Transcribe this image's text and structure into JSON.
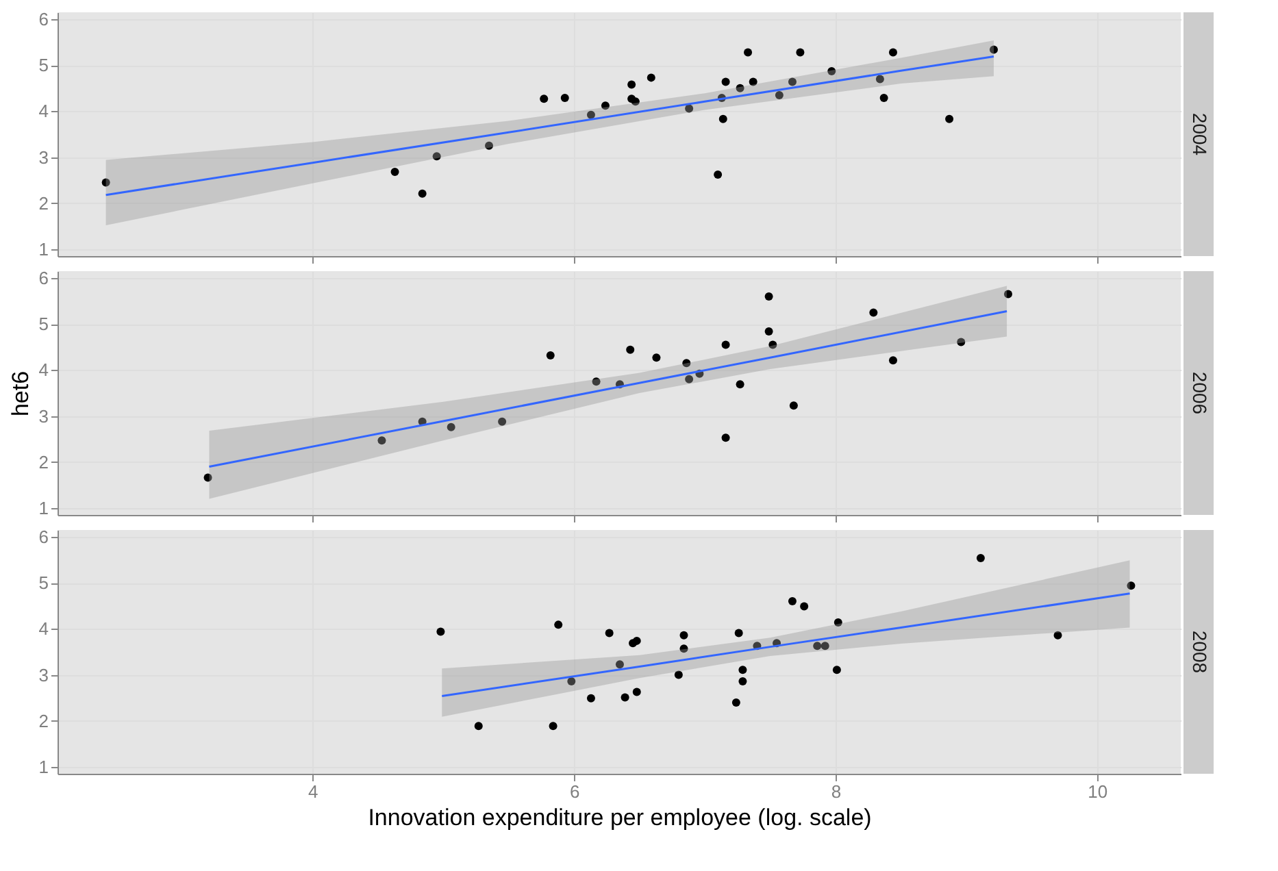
{
  "chart_data": [
    {
      "type": "scatter",
      "title": "2004",
      "xlim": [
        2.05,
        10.64
      ],
      "xticks": [
        4,
        6,
        8,
        10
      ],
      "ylim": [
        0.85,
        6.15
      ],
      "yticks": [
        1,
        2,
        3,
        4,
        5,
        6
      ],
      "grid": true,
      "tick_labels": "y",
      "series": [
        {
          "type": "scatter",
          "marker": "circle",
          "color": "#000000",
          "x": [
            2.42,
            4.63,
            4.84,
            4.95,
            5.35,
            5.77,
            5.93,
            6.13,
            6.24,
            6.44,
            6.44,
            6.47,
            6.59,
            6.88,
            7.1,
            7.13,
            7.14,
            7.16,
            7.27,
            7.33,
            7.37,
            7.57,
            7.67,
            7.73,
            7.97,
            8.34,
            8.37,
            8.44,
            8.87,
            9.21
          ],
          "values": [
            2.45,
            2.68,
            2.21,
            3.02,
            3.25,
            4.27,
            4.29,
            3.92,
            4.12,
            4.58,
            4.27,
            4.21,
            4.73,
            4.06,
            2.62,
            4.29,
            3.83,
            4.64,
            4.5,
            5.28,
            4.64,
            4.35,
            4.64,
            5.28,
            4.87,
            4.7,
            4.29,
            5.28,
            3.83,
            5.34
          ]
        },
        {
          "type": "line",
          "color": "#3366ff",
          "x": [
            2.42,
            4,
            5.5,
            7,
            8.5,
            9.21
          ],
          "values": [
            2.18,
            2.88,
            3.54,
            4.21,
            4.88,
            5.19
          ],
          "lower": [
            1.52,
            2.43,
            3.29,
            4.03,
            4.6,
            4.76
          ],
          "upper": [
            2.94,
            3.33,
            3.79,
            4.39,
            5.16,
            5.54
          ]
        }
      ]
    },
    {
      "type": "scatter",
      "title": "2006",
      "ylabel": "het6",
      "xlim": [
        2.05,
        10.64
      ],
      "xticks": [
        4,
        6,
        8,
        10
      ],
      "ylim": [
        0.85,
        6.15
      ],
      "yticks": [
        1,
        2,
        3,
        4,
        5,
        6
      ],
      "grid": true,
      "tick_labels": "y",
      "series": [
        {
          "type": "scatter",
          "marker": "circle",
          "color": "#000000",
          "x": [
            3.2,
            4.53,
            4.84,
            5.06,
            5.45,
            5.82,
            6.17,
            6.35,
            6.43,
            6.63,
            6.86,
            6.88,
            6.96,
            7.16,
            7.16,
            7.27,
            7.49,
            7.49,
            7.52,
            7.68,
            8.29,
            8.44,
            8.96,
            9.32
          ],
          "values": [
            1.66,
            2.47,
            2.88,
            2.76,
            2.88,
            4.32,
            3.75,
            3.69,
            4.44,
            4.27,
            4.15,
            3.8,
            3.92,
            4.55,
            2.53,
            3.69,
            5.6,
            4.84,
            4.55,
            3.23,
            5.25,
            4.21,
            4.61,
            5.65
          ]
        },
        {
          "type": "line",
          "color": "#3366ff",
          "x": [
            3.21,
            5,
            6.5,
            7.5,
            9.31
          ],
          "values": [
            1.9,
            2.89,
            3.72,
            4.27,
            5.28
          ],
          "lower": [
            1.2,
            2.47,
            3.5,
            4.02,
            4.73
          ],
          "upper": [
            2.68,
            3.31,
            3.94,
            4.52,
            5.83
          ]
        }
      ]
    },
    {
      "type": "scatter",
      "title": "2008",
      "xlabel": "Innovation expenditure per employee (log. scale)",
      "xlim": [
        2.05,
        10.64
      ],
      "xticks": [
        4,
        6,
        8,
        10
      ],
      "ylim": [
        0.85,
        6.15
      ],
      "yticks": [
        1,
        2,
        3,
        4,
        5,
        6
      ],
      "grid": true,
      "series": [
        {
          "type": "scatter",
          "marker": "circle",
          "color": "#000000",
          "x": [
            4.98,
            5.27,
            5.84,
            5.88,
            5.98,
            6.13,
            6.27,
            6.35,
            6.39,
            6.45,
            6.48,
            6.48,
            6.8,
            6.84,
            6.84,
            7.24,
            7.26,
            7.29,
            7.29,
            7.4,
            7.55,
            7.67,
            7.76,
            7.86,
            7.92,
            8.01,
            8.02,
            9.11,
            9.7,
            10.26
          ],
          "values": [
            3.94,
            1.89,
            1.89,
            4.09,
            2.86,
            2.49,
            3.91,
            3.23,
            2.51,
            3.69,
            3.74,
            2.63,
            3.0,
            3.86,
            3.57,
            2.4,
            3.91,
            3.11,
            2.86,
            3.63,
            3.69,
            4.6,
            4.49,
            3.63,
            3.63,
            3.11,
            4.14,
            5.54,
            3.86,
            4.94
          ]
        },
        {
          "type": "line",
          "color": "#3366ff",
          "x": [
            4.99,
            6.5,
            7.5,
            8.5,
            10.25
          ],
          "values": [
            2.54,
            3.18,
            3.61,
            4.03,
            4.77
          ],
          "lower": [
            2.09,
            2.93,
            3.41,
            3.68,
            4.03
          ],
          "upper": [
            3.14,
            3.43,
            3.81,
            4.38,
            5.49
          ]
        }
      ]
    }
  ]
}
